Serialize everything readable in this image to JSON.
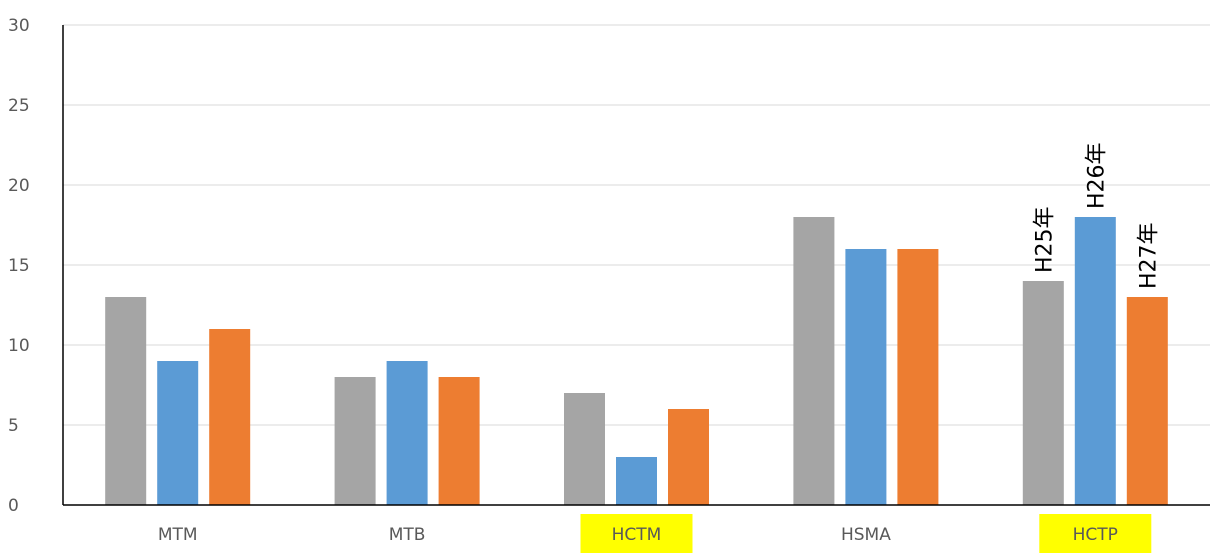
{
  "chart_data": {
    "type": "bar",
    "title": "",
    "xlabel": "",
    "ylabel": "",
    "ylim": [
      0,
      30
    ],
    "yticks": [
      0,
      5,
      10,
      15,
      20,
      25,
      30
    ],
    "grid": true,
    "legend": "none",
    "categories": [
      "MTM",
      "MTB",
      "HCTM",
      "HSMA",
      "HCTP"
    ],
    "highlighted_categories": [
      "HCTM",
      "HCTP"
    ],
    "highlight_color": "#ffff00",
    "series": [
      {
        "name": "H25年",
        "color": "#a5a5a5",
        "values": [
          13,
          8,
          7,
          18,
          14
        ]
      },
      {
        "name": "H26年",
        "color": "#5b9bd5",
        "values": [
          9,
          9,
          3,
          16,
          18
        ]
      },
      {
        "name": "H27年",
        "color": "#ed7d31",
        "values": [
          11,
          8,
          6,
          16,
          13
        ]
      }
    ],
    "series_labels_on_category": "HCTP"
  }
}
